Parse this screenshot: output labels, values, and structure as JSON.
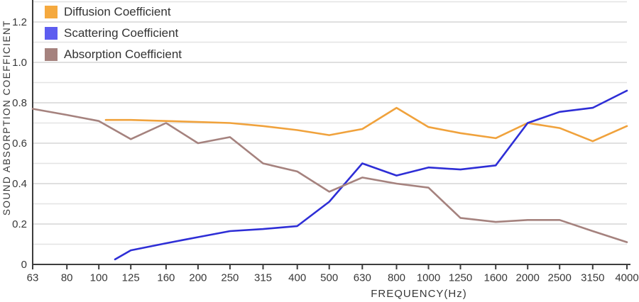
{
  "chart_data": {
    "type": "line",
    "title": "",
    "xlabel": "FREQUENCY(Hz)",
    "ylabel": "SOUND ABSORPTION COEFFICIENT",
    "x_scale": "log (third-octave bands)",
    "categories": [
      63,
      80,
      100,
      125,
      160,
      200,
      250,
      315,
      400,
      500,
      630,
      800,
      1000,
      1250,
      1600,
      2000,
      2500,
      3150,
      4000
    ],
    "x_tick_labels": [
      "63",
      "80",
      "100",
      "125",
      "160",
      "200",
      "250",
      "315",
      "400",
      "500",
      "630",
      "800",
      "1000",
      "1250",
      "1600",
      "2000",
      "2500",
      "3150",
      "4000"
    ],
    "xlim": [
      63,
      4000
    ],
    "ylim": [
      0,
      1.31
    ],
    "y_major_ticks": [
      0,
      0.2,
      0.4,
      0.6,
      0.8,
      1.0,
      1.2
    ],
    "y_tick_labels": [
      "0",
      "0.2",
      "0.4",
      "0.6",
      "0.8",
      "1.0",
      "1.2"
    ],
    "y_minor_step": 0.1,
    "grid": "horizontal gridlines every 0.1, no vertical gridlines",
    "legend_position": "top-left inside plot",
    "series": [
      {
        "name": "Diffusion Coefficient",
        "line_color": "#F0A23C",
        "swatch_color": "#F5A93E",
        "points": [
          [
            105,
            0.715
          ],
          [
            125,
            0.715
          ],
          [
            160,
            0.71
          ],
          [
            200,
            0.705
          ],
          [
            250,
            0.7
          ],
          [
            315,
            0.685
          ],
          [
            400,
            0.665
          ],
          [
            500,
            0.64
          ],
          [
            630,
            0.67
          ],
          [
            800,
            0.775
          ],
          [
            1000,
            0.68
          ],
          [
            1250,
            0.65
          ],
          [
            1600,
            0.625
          ],
          [
            2000,
            0.7
          ],
          [
            2500,
            0.675
          ],
          [
            3150,
            0.61
          ],
          [
            4000,
            0.685
          ]
        ]
      },
      {
        "name": "Scattering Coefficient",
        "line_color": "#2E2ED6",
        "swatch_color": "#5D5DF0",
        "points": [
          [
            112,
            0.025
          ],
          [
            125,
            0.07
          ],
          [
            160,
            0.105
          ],
          [
            200,
            0.135
          ],
          [
            250,
            0.165
          ],
          [
            315,
            0.175
          ],
          [
            400,
            0.19
          ],
          [
            500,
            0.31
          ],
          [
            630,
            0.5
          ],
          [
            800,
            0.44
          ],
          [
            1000,
            0.48
          ],
          [
            1250,
            0.47
          ],
          [
            1600,
            0.49
          ],
          [
            2000,
            0.7
          ],
          [
            2500,
            0.755
          ],
          [
            3150,
            0.775
          ],
          [
            4000,
            0.86
          ]
        ]
      },
      {
        "name": "Absorption Coefficient",
        "line_color": "#A5827E",
        "swatch_color": "#A5827E",
        "points": [
          [
            63,
            0.77
          ],
          [
            80,
            0.74
          ],
          [
            100,
            0.71
          ],
          [
            125,
            0.62
          ],
          [
            160,
            0.7
          ],
          [
            200,
            0.6
          ],
          [
            250,
            0.63
          ],
          [
            315,
            0.5
          ],
          [
            400,
            0.46
          ],
          [
            500,
            0.36
          ],
          [
            630,
            0.43
          ],
          [
            800,
            0.4
          ],
          [
            1000,
            0.38
          ],
          [
            1250,
            0.23
          ],
          [
            1600,
            0.21
          ],
          [
            2000,
            0.22
          ],
          [
            2500,
            0.22
          ],
          [
            3150,
            0.165
          ],
          [
            4000,
            0.11
          ]
        ]
      }
    ],
    "colors": {
      "grid_major": "#d6d6d6",
      "grid_minor": "#e3e3e3",
      "axis": "#3d3d3d",
      "text": "#383838",
      "background": "#ffffff"
    }
  }
}
